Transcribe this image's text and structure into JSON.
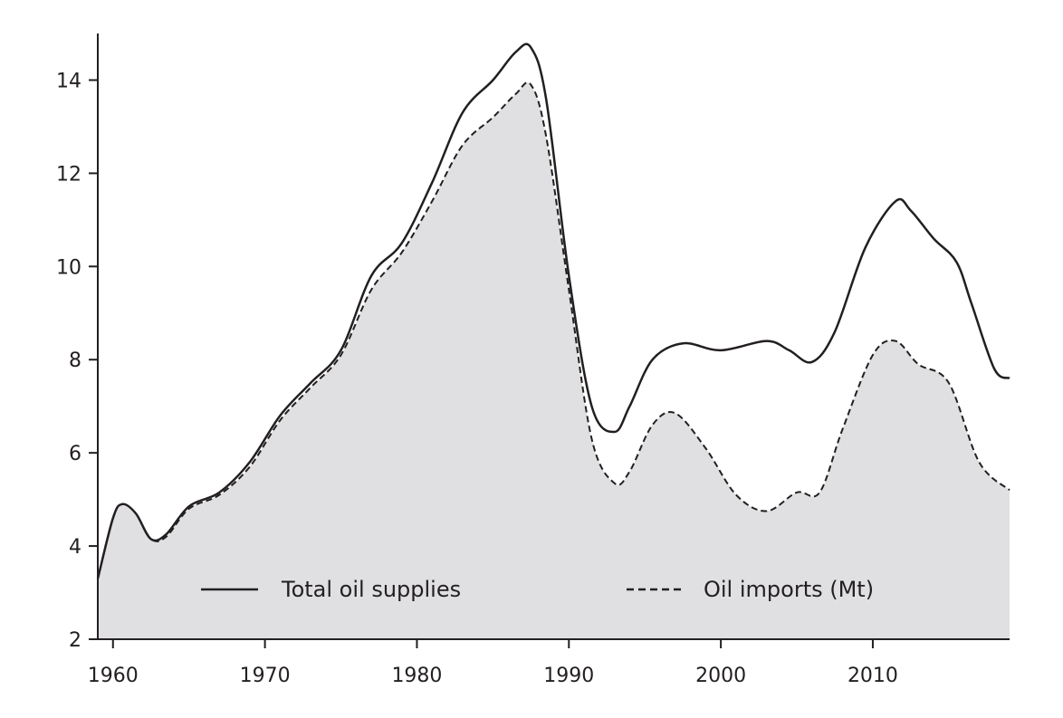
{
  "chart_data": {
    "type": "area",
    "title": "",
    "xlabel": "",
    "ylabel": "",
    "xlim": [
      1959,
      2019
    ],
    "ylim": [
      2,
      15
    ],
    "x_ticks": [
      1960,
      1970,
      1980,
      1990,
      2000,
      2010
    ],
    "y_ticks": [
      2,
      4,
      6,
      8,
      10,
      12,
      14
    ],
    "grid": false,
    "legend_position": "bottom-inside",
    "colors": {
      "fill": "#e0e0e2",
      "line": "#231f20"
    },
    "series": [
      {
        "name": "Total oil supplies",
        "style": "solid",
        "points": [
          [
            1959,
            3.3
          ],
          [
            1960,
            4.6
          ],
          [
            1960.6,
            4.9
          ],
          [
            1961.5,
            4.7
          ],
          [
            1962.5,
            4.15
          ],
          [
            1963.5,
            4.25
          ],
          [
            1965,
            4.85
          ],
          [
            1967,
            5.15
          ],
          [
            1969,
            5.8
          ],
          [
            1971,
            6.8
          ],
          [
            1973,
            7.5
          ],
          [
            1975,
            8.2
          ],
          [
            1977,
            9.8
          ],
          [
            1979,
            10.5
          ],
          [
            1981,
            11.8
          ],
          [
            1983,
            13.3
          ],
          [
            1985,
            14.0
          ],
          [
            1986.5,
            14.6
          ],
          [
            1987.5,
            14.7
          ],
          [
            1988.5,
            13.6
          ],
          [
            1990,
            9.8
          ],
          [
            1991.5,
            7.0
          ],
          [
            1993,
            6.45
          ],
          [
            1994,
            7.0
          ],
          [
            1995.5,
            8.0
          ],
          [
            1997.5,
            8.35
          ],
          [
            2000,
            8.2
          ],
          [
            2003,
            8.4
          ],
          [
            2004.5,
            8.2
          ],
          [
            2006,
            7.95
          ],
          [
            2007.5,
            8.6
          ],
          [
            2009.5,
            10.4
          ],
          [
            2011.5,
            11.4
          ],
          [
            2012.5,
            11.2
          ],
          [
            2014,
            10.6
          ],
          [
            2015.5,
            10.1
          ],
          [
            2016.5,
            9.2
          ],
          [
            2018,
            7.8
          ],
          [
            2019,
            7.6
          ]
        ]
      },
      {
        "name": "Oil imports (Mt)",
        "style": "dashed",
        "points": [
          [
            1959,
            3.3
          ],
          [
            1960,
            4.6
          ],
          [
            1960.6,
            4.9
          ],
          [
            1961.5,
            4.7
          ],
          [
            1962.5,
            4.15
          ],
          [
            1963.5,
            4.2
          ],
          [
            1965,
            4.8
          ],
          [
            1967,
            5.1
          ],
          [
            1969,
            5.7
          ],
          [
            1971,
            6.7
          ],
          [
            1973,
            7.4
          ],
          [
            1975,
            8.1
          ],
          [
            1977,
            9.5
          ],
          [
            1979,
            10.3
          ],
          [
            1981,
            11.4
          ],
          [
            1983,
            12.6
          ],
          [
            1985,
            13.2
          ],
          [
            1986.5,
            13.7
          ],
          [
            1987.5,
            13.9
          ],
          [
            1988.5,
            12.8
          ],
          [
            1990,
            9.5
          ],
          [
            1991.5,
            6.3
          ],
          [
            1993,
            5.35
          ],
          [
            1994,
            5.6
          ],
          [
            1995.5,
            6.6
          ],
          [
            1997,
            6.85
          ],
          [
            1999,
            6.1
          ],
          [
            2001,
            5.1
          ],
          [
            2003,
            4.75
          ],
          [
            2005,
            5.15
          ],
          [
            2006.5,
            5.15
          ],
          [
            2008,
            6.5
          ],
          [
            2010,
            8.1
          ],
          [
            2011.5,
            8.4
          ],
          [
            2013,
            7.9
          ],
          [
            2015,
            7.5
          ],
          [
            2017,
            5.8
          ],
          [
            2019,
            5.2
          ]
        ]
      }
    ]
  }
}
